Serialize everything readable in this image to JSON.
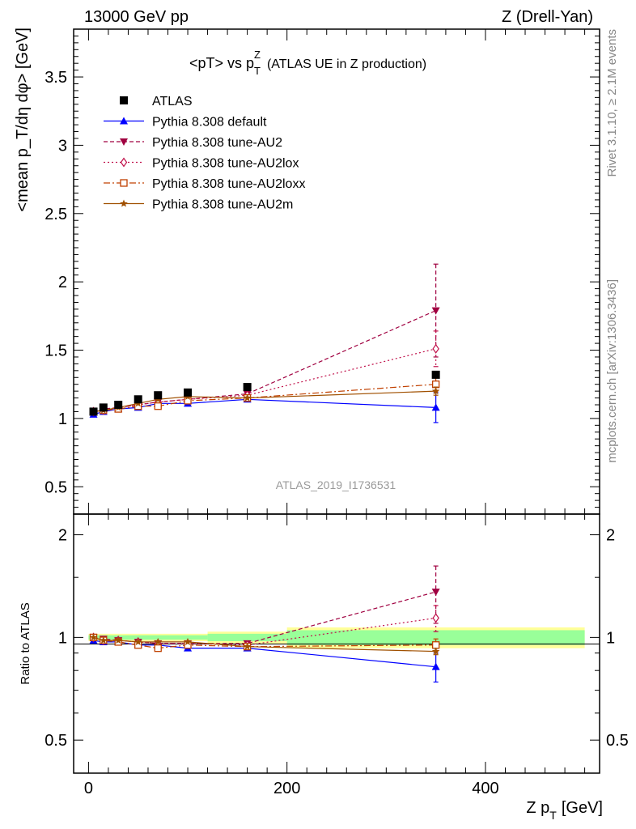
{
  "header": {
    "left": "13000 GeV pp",
    "right": "Z (Drell-Yan)"
  },
  "side_labels": {
    "rivet": "Rivet 3.1.10, ≥ 2.1M events",
    "mcplots": "mcplots.cern.ch [arXiv:1306.3436]"
  },
  "chart_data": [
    {
      "type": "scatter",
      "panel": "main",
      "title_main": "<pT> vs p",
      "title_sup": "Z",
      "title_sub": "T",
      "title_rest": "(ATLAS UE in Z production)",
      "ylabel": "<mean p_T/dη dφ> [GeV]",
      "analysis_id": "ATLAS_2019_I1736531",
      "xlim": [
        -15,
        515
      ],
      "ylim": [
        0.3,
        3.85
      ],
      "yticks": [
        0.5,
        1,
        1.5,
        2,
        2.5,
        3,
        3.5
      ],
      "ytick_labels": [
        "0.5",
        "1",
        "1.5",
        "2",
        "2.5",
        "3",
        "3.5"
      ],
      "legend_position": "top-left",
      "series": [
        {
          "name": "ATLAS",
          "color": "#000000",
          "marker": "square",
          "x": [
            5,
            15,
            30,
            50,
            70,
            100,
            160,
            350
          ],
          "y": [
            1.05,
            1.08,
            1.1,
            1.14,
            1.17,
            1.19,
            1.23,
            1.32
          ]
        },
        {
          "name": "Pythia 8.308 default",
          "color": "#0000ff",
          "marker": "triangle-up",
          "dash": "",
          "x": [
            5,
            15,
            30,
            50,
            70,
            100,
            160,
            350
          ],
          "y": [
            1.03,
            1.05,
            1.07,
            1.08,
            1.11,
            1.11,
            1.14,
            1.08
          ],
          "yerr": [
            0,
            0,
            0,
            0,
            0,
            0,
            0,
            0.11
          ]
        },
        {
          "name": "Pythia 8.308 tune-AU2",
          "color": "#a00040",
          "marker": "triangle-down",
          "dash": "5,3",
          "x": [
            5,
            15,
            30,
            50,
            70,
            100,
            160,
            350
          ],
          "y": [
            1.05,
            1.07,
            1.08,
            1.1,
            1.12,
            1.14,
            1.18,
            1.79
          ],
          "yerr": [
            0,
            0,
            0,
            0,
            0,
            0,
            0,
            0.34
          ]
        },
        {
          "name": "Pythia 8.308 tune-AU2lox",
          "color": "#c0104a",
          "marker": "diamond-open",
          "dash": "2,3",
          "x": [
            5,
            15,
            30,
            50,
            70,
            100,
            160,
            350
          ],
          "y": [
            1.05,
            1.06,
            1.08,
            1.1,
            1.12,
            1.14,
            1.17,
            1.51
          ],
          "yerr": [
            0,
            0,
            0,
            0,
            0,
            0,
            0,
            0.13
          ]
        },
        {
          "name": "Pythia 8.308 tune-AU2loxx",
          "color": "#c04000",
          "marker": "square-open",
          "dash": "8,3,2,3",
          "x": [
            5,
            15,
            30,
            50,
            70,
            100,
            160,
            350
          ],
          "y": [
            1.05,
            1.06,
            1.07,
            1.09,
            1.09,
            1.13,
            1.15,
            1.25
          ],
          "yerr": [
            0,
            0,
            0,
            0,
            0,
            0,
            0,
            0.05
          ]
        },
        {
          "name": "Pythia 8.308 tune-AU2m",
          "color": "#a05000",
          "marker": "star",
          "dash": "",
          "x": [
            5,
            15,
            30,
            50,
            70,
            100,
            160,
            350
          ],
          "y": [
            1.05,
            1.06,
            1.08,
            1.11,
            1.14,
            1.16,
            1.15,
            1.2
          ],
          "yerr": [
            0,
            0,
            0,
            0,
            0,
            0,
            0,
            0.03
          ]
        }
      ]
    },
    {
      "type": "scatter",
      "panel": "ratio",
      "ylabel": "Ratio to ATLAS",
      "xlabel_main": "Z p",
      "xlabel_sub": "T",
      "xlabel_unit": "[GeV]",
      "xlim": [
        -15,
        515
      ],
      "ylim": [
        0.4,
        2.3
      ],
      "xticks": [
        0,
        200,
        400
      ],
      "xtick_labels": [
        "0",
        "200",
        "400"
      ],
      "yticks": [
        0.5,
        1,
        2
      ],
      "ytick_labels": [
        "0.5",
        "1",
        "2"
      ],
      "bands": [
        {
          "x0": 0,
          "x1": 120,
          "green": [
            0.985,
            1.015
          ],
          "yellow": [
            0.975,
            1.025
          ]
        },
        {
          "x0": 120,
          "x1": 200,
          "green": [
            0.975,
            1.025
          ],
          "yellow": [
            0.96,
            1.04
          ]
        },
        {
          "x0": 200,
          "x1": 500,
          "green": [
            0.95,
            1.05
          ],
          "yellow": [
            0.93,
            1.07
          ]
        }
      ],
      "series": [
        {
          "name": "Pythia 8.308 default",
          "color": "#0000ff",
          "marker": "triangle-up",
          "dash": "",
          "x": [
            5,
            15,
            30,
            50,
            70,
            100,
            160,
            350
          ],
          "y": [
            0.98,
            0.97,
            0.97,
            0.95,
            0.95,
            0.93,
            0.93,
            0.82
          ],
          "yerr": [
            0,
            0,
            0,
            0,
            0,
            0,
            0,
            0.08
          ]
        },
        {
          "name": "Pythia 8.308 tune-AU2",
          "color": "#a00040",
          "marker": "triangle-down",
          "dash": "5,3",
          "x": [
            5,
            15,
            30,
            50,
            70,
            100,
            160,
            350
          ],
          "y": [
            1.0,
            0.99,
            0.98,
            0.97,
            0.96,
            0.96,
            0.96,
            1.36
          ],
          "yerr": [
            0,
            0,
            0,
            0,
            0,
            0,
            0,
            0.26
          ]
        },
        {
          "name": "Pythia 8.308 tune-AU2lox",
          "color": "#c0104a",
          "marker": "diamond-open",
          "dash": "2,3",
          "x": [
            5,
            15,
            30,
            50,
            70,
            100,
            160,
            350
          ],
          "y": [
            1.0,
            0.98,
            0.98,
            0.97,
            0.96,
            0.96,
            0.95,
            1.14
          ],
          "yerr": [
            0,
            0,
            0,
            0,
            0,
            0,
            0,
            0.1
          ]
        },
        {
          "name": "Pythia 8.308 tune-AU2loxx",
          "color": "#c04000",
          "marker": "square-open",
          "dash": "8,3,2,3",
          "x": [
            5,
            15,
            30,
            50,
            70,
            100,
            160,
            350
          ],
          "y": [
            1.0,
            0.98,
            0.97,
            0.95,
            0.93,
            0.95,
            0.94,
            0.95
          ],
          "yerr": [
            0,
            0,
            0,
            0,
            0,
            0,
            0,
            0.04
          ]
        },
        {
          "name": "Pythia 8.308 tune-AU2m",
          "color": "#a05000",
          "marker": "star",
          "dash": "",
          "x": [
            5,
            15,
            30,
            50,
            70,
            100,
            160,
            350
          ],
          "y": [
            1.0,
            0.98,
            0.98,
            0.97,
            0.97,
            0.97,
            0.94,
            0.91
          ],
          "yerr": [
            0,
            0,
            0,
            0,
            0,
            0,
            0,
            0.02
          ]
        }
      ]
    }
  ]
}
